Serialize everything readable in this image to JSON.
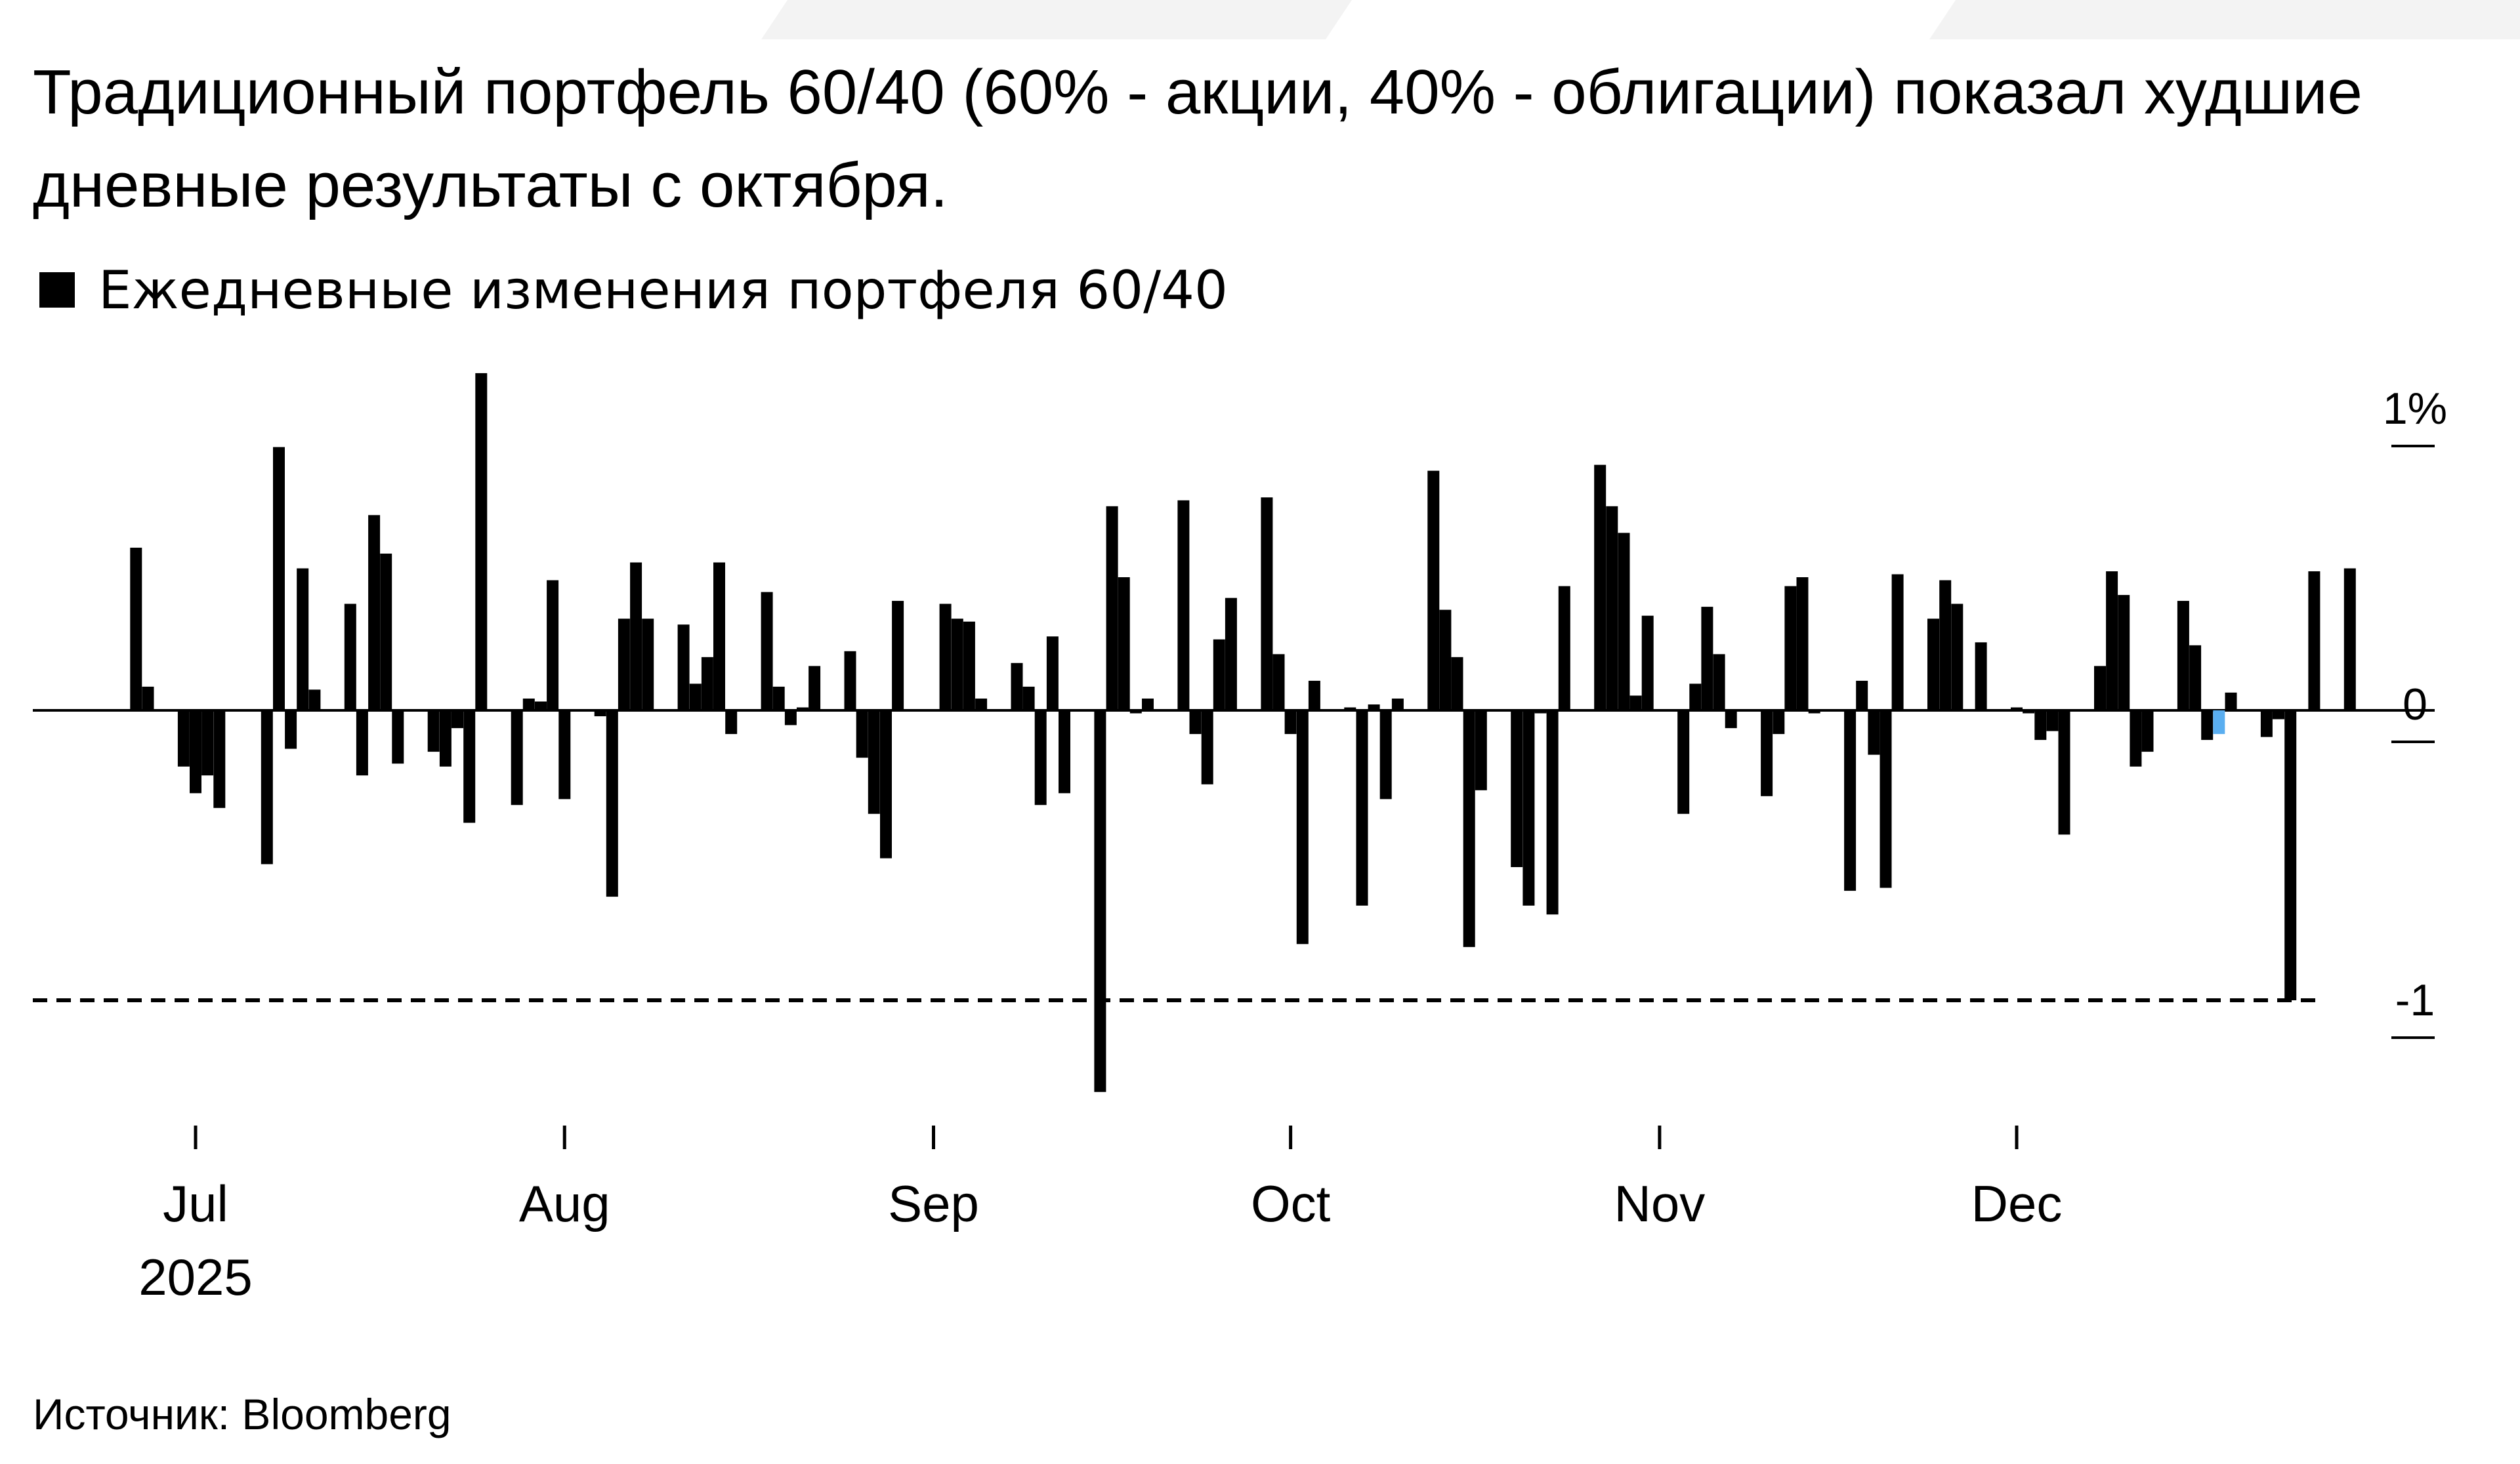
{
  "title": "Традиционный портфель 60/40 (60% - акции, 40% - облигации) показал худшие дневные результаты с октября.",
  "source": "Источник: Bloomberg",
  "colors": {
    "bar": "#000000",
    "highlight": "#5aaef0",
    "band": "#f3f3f3"
  },
  "chart_data": {
    "type": "bar",
    "legend": [
      "Ежедневные изменения портфеля 60/40"
    ],
    "legend_position": "top-left",
    "y_unit": "%",
    "ylim": [
      -1.3,
      1.15
    ],
    "y_ticks": [
      {
        "value": 1,
        "label": "1%"
      },
      {
        "value": 0,
        "label": "0"
      },
      {
        "value": -1,
        "label": "-1"
      }
    ],
    "x_ticks": [
      {
        "date": "2025-07-01",
        "label": "Jul",
        "sublabel": "2025"
      },
      {
        "date": "2025-08-01",
        "label": "Aug"
      },
      {
        "date": "2025-09-01",
        "label": "Sep"
      },
      {
        "date": "2025-10-01",
        "label": "Oct"
      },
      {
        "date": "2025-11-01",
        "label": "Nov"
      },
      {
        "date": "2025-12-01",
        "label": "Dec"
      }
    ],
    "grid": false,
    "reference_line": {
      "value": -0.98,
      "style": "dashed"
    },
    "highlight_date": "2025-12-18",
    "series": [
      {
        "values": [
          {
            "date": "2025-06-26",
            "value": 0.55
          },
          {
            "date": "2025-06-27",
            "value": 0.08
          },
          {
            "date": "2025-06-30",
            "value": -0.19
          },
          {
            "date": "2025-07-01",
            "value": -0.28
          },
          {
            "date": "2025-07-02",
            "value": -0.22
          },
          {
            "date": "2025-07-03",
            "value": -0.33
          },
          {
            "date": "2025-07-07",
            "value": -0.52
          },
          {
            "date": "2025-07-08",
            "value": 0.89
          },
          {
            "date": "2025-07-09",
            "value": -0.13
          },
          {
            "date": "2025-07-10",
            "value": 0.48
          },
          {
            "date": "2025-07-11",
            "value": 0.07
          },
          {
            "date": "2025-07-14",
            "value": 0.36
          },
          {
            "date": "2025-07-15",
            "value": -0.22
          },
          {
            "date": "2025-07-16",
            "value": 0.66
          },
          {
            "date": "2025-07-17",
            "value": 0.53
          },
          {
            "date": "2025-07-18",
            "value": -0.18
          },
          {
            "date": "2025-07-21",
            "value": -0.14
          },
          {
            "date": "2025-07-22",
            "value": -0.19
          },
          {
            "date": "2025-07-23",
            "value": -0.06
          },
          {
            "date": "2025-07-24",
            "value": -0.38
          },
          {
            "date": "2025-07-25",
            "value": 1.14
          },
          {
            "date": "2025-07-28",
            "value": -0.32
          },
          {
            "date": "2025-07-29",
            "value": 0.04
          },
          {
            "date": "2025-07-30",
            "value": 0.03
          },
          {
            "date": "2025-07-31",
            "value": 0.44
          },
          {
            "date": "2025-08-01",
            "value": -0.3
          },
          {
            "date": "2025-08-04",
            "value": -0.02
          },
          {
            "date": "2025-08-05",
            "value": -0.63
          },
          {
            "date": "2025-08-06",
            "value": 0.31
          },
          {
            "date": "2025-08-07",
            "value": 0.5
          },
          {
            "date": "2025-08-08",
            "value": 0.31
          },
          {
            "date": "2025-08-11",
            "value": 0.29
          },
          {
            "date": "2025-08-12",
            "value": 0.09
          },
          {
            "date": "2025-08-13",
            "value": 0.18
          },
          {
            "date": "2025-08-14",
            "value": 0.5
          },
          {
            "date": "2025-08-15",
            "value": -0.08
          },
          {
            "date": "2025-08-18",
            "value": 0.4
          },
          {
            "date": "2025-08-19",
            "value": 0.08
          },
          {
            "date": "2025-08-20",
            "value": -0.05
          },
          {
            "date": "2025-08-21",
            "value": 0.01
          },
          {
            "date": "2025-08-22",
            "value": 0.15
          },
          {
            "date": "2025-08-25",
            "value": 0.2
          },
          {
            "date": "2025-08-26",
            "value": -0.16
          },
          {
            "date": "2025-08-27",
            "value": -0.35
          },
          {
            "date": "2025-08-28",
            "value": -0.5
          },
          {
            "date": "2025-08-29",
            "value": 0.37
          },
          {
            "date": "2025-09-02",
            "value": 0.36
          },
          {
            "date": "2025-09-03",
            "value": 0.31
          },
          {
            "date": "2025-09-04",
            "value": 0.3
          },
          {
            "date": "2025-09-05",
            "value": 0.04
          },
          {
            "date": "2025-09-08",
            "value": 0.16
          },
          {
            "date": "2025-09-09",
            "value": 0.08
          },
          {
            "date": "2025-09-10",
            "value": -0.32
          },
          {
            "date": "2025-09-11",
            "value": 0.25
          },
          {
            "date": "2025-09-12",
            "value": -0.28
          },
          {
            "date": "2025-09-15",
            "value": -1.29
          },
          {
            "date": "2025-09-16",
            "value": 0.69
          },
          {
            "date": "2025-09-17",
            "value": 0.45
          },
          {
            "date": "2025-09-18",
            "value": -0.01
          },
          {
            "date": "2025-09-19",
            "value": 0.04
          },
          {
            "date": "2025-09-22",
            "value": 0.71
          },
          {
            "date": "2025-09-23",
            "value": -0.08
          },
          {
            "date": "2025-09-24",
            "value": -0.25
          },
          {
            "date": "2025-09-25",
            "value": 0.24
          },
          {
            "date": "2025-09-26",
            "value": 0.38
          },
          {
            "date": "2025-09-29",
            "value": 0.72
          },
          {
            "date": "2025-09-30",
            "value": 0.19
          },
          {
            "date": "2025-10-01",
            "value": -0.08
          },
          {
            "date": "2025-10-02",
            "value": -0.79
          },
          {
            "date": "2025-10-03",
            "value": 0.1
          },
          {
            "date": "2025-10-06",
            "value": 0.01
          },
          {
            "date": "2025-10-07",
            "value": -0.66
          },
          {
            "date": "2025-10-08",
            "value": 0.02
          },
          {
            "date": "2025-10-09",
            "value": -0.3
          },
          {
            "date": "2025-10-10",
            "value": 0.04
          },
          {
            "date": "2025-10-13",
            "value": 0.81
          },
          {
            "date": "2025-10-14",
            "value": 0.34
          },
          {
            "date": "2025-10-15",
            "value": 0.18
          },
          {
            "date": "2025-10-16",
            "value": -0.8
          },
          {
            "date": "2025-10-17",
            "value": -0.27
          },
          {
            "date": "2025-10-20",
            "value": -0.53
          },
          {
            "date": "2025-10-21",
            "value": -0.66
          },
          {
            "date": "2025-10-22",
            "value": -0.01
          },
          {
            "date": "2025-10-23",
            "value": -0.69
          },
          {
            "date": "2025-10-24",
            "value": 0.42
          },
          {
            "date": "2025-10-27",
            "value": 0.83
          },
          {
            "date": "2025-10-28",
            "value": 0.69
          },
          {
            "date": "2025-10-29",
            "value": 0.6
          },
          {
            "date": "2025-10-30",
            "value": 0.05
          },
          {
            "date": "2025-10-31",
            "value": 0.32
          },
          {
            "date": "2025-11-03",
            "value": -0.35
          },
          {
            "date": "2025-11-04",
            "value": 0.09
          },
          {
            "date": "2025-11-05",
            "value": 0.35
          },
          {
            "date": "2025-11-06",
            "value": 0.19
          },
          {
            "date": "2025-11-07",
            "value": -0.06
          },
          {
            "date": "2025-11-10",
            "value": -0.29
          },
          {
            "date": "2025-11-11",
            "value": -0.08
          },
          {
            "date": "2025-11-12",
            "value": 0.42
          },
          {
            "date": "2025-11-13",
            "value": 0.45
          },
          {
            "date": "2025-11-14",
            "value": -0.01
          },
          {
            "date": "2025-11-17",
            "value": -0.61
          },
          {
            "date": "2025-11-18",
            "value": 0.1
          },
          {
            "date": "2025-11-19",
            "value": -0.15
          },
          {
            "date": "2025-11-20",
            "value": -0.6
          },
          {
            "date": "2025-11-21",
            "value": 0.46
          },
          {
            "date": "2025-11-24",
            "value": 0.31
          },
          {
            "date": "2025-11-25",
            "value": 0.44
          },
          {
            "date": "2025-11-26",
            "value": 0.36
          },
          {
            "date": "2025-11-28",
            "value": 0.23
          },
          {
            "date": "2025-12-01",
            "value": 0.01
          },
          {
            "date": "2025-12-02",
            "value": -0.01
          },
          {
            "date": "2025-12-03",
            "value": -0.1
          },
          {
            "date": "2025-12-04",
            "value": -0.07
          },
          {
            "date": "2025-12-05",
            "value": -0.42
          },
          {
            "date": "2025-12-08",
            "value": 0.15
          },
          {
            "date": "2025-12-09",
            "value": 0.47
          },
          {
            "date": "2025-12-10",
            "value": 0.39
          },
          {
            "date": "2025-12-11",
            "value": -0.19
          },
          {
            "date": "2025-12-12",
            "value": -0.14
          },
          {
            "date": "2025-12-15",
            "value": 0.37
          },
          {
            "date": "2025-12-16",
            "value": 0.22
          },
          {
            "date": "2025-12-17",
            "value": -0.1
          },
          {
            "date": "2025-12-18",
            "value": -0.08
          },
          {
            "date": "2025-12-19",
            "value": 0.06
          },
          {
            "date": "2025-12-22",
            "value": -0.09
          },
          {
            "date": "2025-12-23",
            "value": -0.03
          },
          {
            "date": "2025-12-24",
            "value": -0.98
          },
          {
            "date": "2025-12-26",
            "value": 0.47
          },
          {
            "date": "2025-12-29",
            "value": 0.48
          }
        ]
      }
    ]
  }
}
